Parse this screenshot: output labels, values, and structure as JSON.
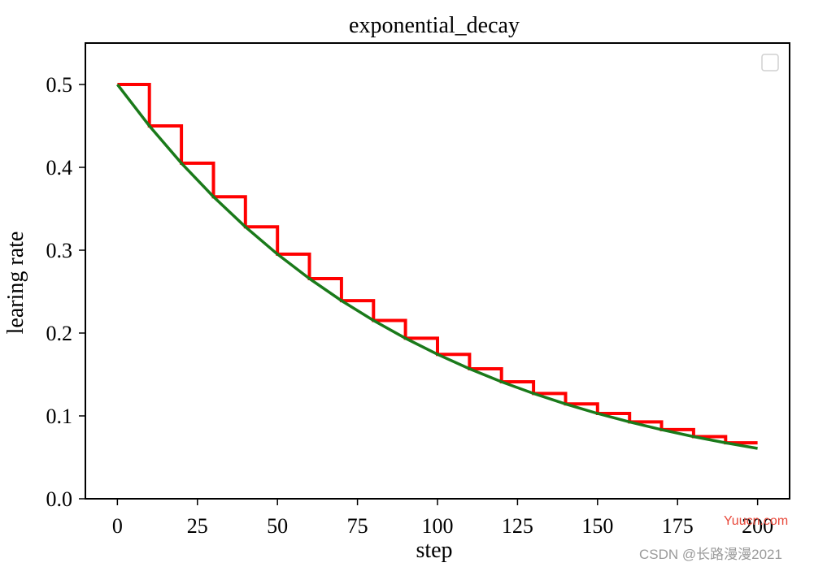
{
  "chart_data": {
    "type": "line",
    "title": "exponential_decay",
    "xlabel": "step",
    "ylabel": "learing rate",
    "xlim": [
      -10,
      210
    ],
    "ylim": [
      0,
      0.55
    ],
    "x_ticks": [
      0,
      25,
      50,
      75,
      100,
      125,
      150,
      175,
      200
    ],
    "x_tick_labels": [
      "0",
      "25",
      "50",
      "75",
      "100",
      "125",
      "150",
      "175",
      "200"
    ],
    "y_ticks": [
      0.0,
      0.1,
      0.2,
      0.3,
      0.4,
      0.5
    ],
    "y_tick_labels": [
      "0.0",
      "0.1",
      "0.2",
      "0.3",
      "0.4",
      "0.5"
    ],
    "grid": false,
    "legend": "top-right (empty)",
    "series": [
      {
        "style": "staircase",
        "color": "#ff0000",
        "x": [
          0,
          10,
          10,
          20,
          20,
          30,
          30,
          40,
          40,
          50,
          50,
          60,
          60,
          70,
          70,
          80,
          80,
          90,
          90,
          100,
          100,
          110,
          110,
          120,
          120,
          130,
          130,
          140,
          140,
          150,
          150,
          160,
          160,
          170,
          170,
          180,
          180,
          190,
          190,
          200
        ],
        "y": [
          0.5,
          0.5,
          0.45,
          0.45,
          0.405,
          0.405,
          0.3645,
          0.3645,
          0.3281,
          0.3281,
          0.2952,
          0.2952,
          0.2657,
          0.2657,
          0.2391,
          0.2391,
          0.2152,
          0.2152,
          0.1937,
          0.1937,
          0.1743,
          0.1743,
          0.1569,
          0.1569,
          0.1412,
          0.1412,
          0.1271,
          0.1271,
          0.1144,
          0.1144,
          0.1029,
          0.1029,
          0.0927,
          0.0927,
          0.0834,
          0.0834,
          0.075,
          0.075,
          0.0675,
          0.0675
        ]
      },
      {
        "style": "smooth",
        "color": "#1a7a1a",
        "x": [
          0,
          10,
          20,
          30,
          40,
          50,
          60,
          70,
          80,
          90,
          100,
          110,
          120,
          130,
          140,
          150,
          160,
          170,
          180,
          190,
          200
        ],
        "y": [
          0.5,
          0.45,
          0.405,
          0.3645,
          0.3281,
          0.2952,
          0.2657,
          0.2391,
          0.2152,
          0.1937,
          0.1743,
          0.1569,
          0.1412,
          0.1271,
          0.1144,
          0.1029,
          0.0927,
          0.0834,
          0.075,
          0.0675,
          0.0608
        ]
      }
    ]
  },
  "watermarks": {
    "yuucn": "Yuucn.com",
    "csdn": "CSDN @长路漫漫2021"
  }
}
